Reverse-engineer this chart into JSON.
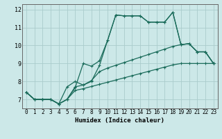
{
  "xlabel": "Humidex (Indice chaleur)",
  "bg_color": "#cce8e8",
  "grid_color": "#aacccc",
  "line_color": "#1a6b5a",
  "xlim": [
    -0.5,
    23.5
  ],
  "ylim": [
    6.5,
    12.3
  ],
  "yticks": [
    7,
    8,
    9,
    10,
    11,
    12
  ],
  "xticks": [
    0,
    1,
    2,
    3,
    4,
    5,
    6,
    7,
    8,
    9,
    10,
    11,
    12,
    13,
    14,
    15,
    16,
    17,
    18,
    19,
    20,
    21,
    22,
    23
  ],
  "line1": [
    7.4,
    7.0,
    7.0,
    7.0,
    6.75,
    7.0,
    7.65,
    9.0,
    8.85,
    9.15,
    10.3,
    11.7,
    11.65,
    11.65,
    11.65,
    11.3,
    11.3,
    11.3,
    11.85,
    10.05,
    10.1,
    9.65,
    9.65,
    9.0
  ],
  "line2": [
    7.4,
    7.0,
    7.0,
    7.0,
    6.75,
    7.7,
    8.0,
    7.8,
    8.0,
    8.9,
    10.3,
    11.7,
    11.65,
    11.65,
    11.65,
    11.3,
    11.3,
    11.3,
    11.85,
    10.05,
    10.1,
    9.65,
    9.65,
    9.0
  ],
  "line3": [
    7.4,
    7.0,
    7.0,
    7.0,
    6.75,
    7.0,
    7.7,
    7.8,
    8.05,
    8.55,
    8.75,
    8.9,
    9.05,
    9.2,
    9.35,
    9.5,
    9.65,
    9.8,
    9.95,
    10.05,
    10.1,
    9.65,
    9.65,
    9.0
  ],
  "line4": [
    7.4,
    7.0,
    7.0,
    7.0,
    6.75,
    7.0,
    7.5,
    7.6,
    7.72,
    7.84,
    7.96,
    8.08,
    8.2,
    8.32,
    8.44,
    8.56,
    8.68,
    8.8,
    8.92,
    9.0,
    9.0,
    9.0,
    9.0,
    9.0
  ]
}
